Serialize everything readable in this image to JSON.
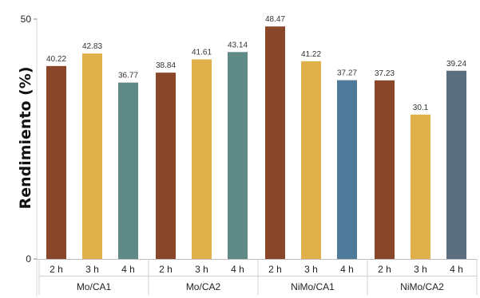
{
  "chart_data": {
    "type": "bar",
    "title": "",
    "ylabel": "Rendimiento (%)",
    "xlabel": "",
    "ylim": [
      0,
      50
    ],
    "yticks": [
      0,
      50
    ],
    "grid": false,
    "groups": [
      {
        "name": "Mo/CA1",
        "bars": [
          {
            "label": "2 h",
            "value": 40.22,
            "value_label": "40.22",
            "color": "#8a4628"
          },
          {
            "label": "3 h",
            "value": 42.83,
            "value_label": "42.83",
            "color": "#e0b04a"
          },
          {
            "label": "4 h",
            "value": 36.77,
            "value_label": "36.77",
            "color": "#5f8a86"
          }
        ]
      },
      {
        "name": "Mo/CA2",
        "bars": [
          {
            "label": "2 h",
            "value": 38.84,
            "value_label": "38.84",
            "color": "#8a4628"
          },
          {
            "label": "3 h",
            "value": 41.61,
            "value_label": "41.61",
            "color": "#e0b04a"
          },
          {
            "label": "4 h",
            "value": 43.14,
            "value_label": "43.14",
            "color": "#5f8a86"
          }
        ]
      },
      {
        "name": "NiMo/CA1",
        "bars": [
          {
            "label": "2 h",
            "value": 48.47,
            "value_label": "48.47",
            "color": "#8a4628"
          },
          {
            "label": "3 h",
            "value": 41.22,
            "value_label": "41.22",
            "color": "#e0b04a"
          },
          {
            "label": "4 h",
            "value": 37.27,
            "value_label": "37.27",
            "color": "#4f7a9a"
          }
        ]
      },
      {
        "name": "NiMo/CA2",
        "bars": [
          {
            "label": "2 h",
            "value": 37.23,
            "value_label": "37.23",
            "color": "#8a4628"
          },
          {
            "label": "3 h",
            "value": 30.1,
            "value_label": "30.1",
            "color": "#e0b04a"
          },
          {
            "label": "4 h",
            "value": 39.24,
            "value_label": "39.24",
            "color": "#5a6e80"
          }
        ]
      }
    ]
  }
}
